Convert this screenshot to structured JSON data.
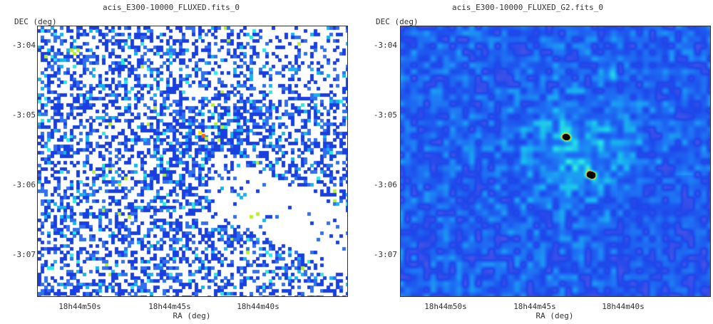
{
  "panels": [
    {
      "title": "acis_E300-10000_FLUXED.fits_0",
      "y_axis_label": "DEC (deg)",
      "x_axis_label": "RA (deg)",
      "y_ticks": [
        "-3:04",
        "-3:05",
        "-3:06",
        "-3:07"
      ],
      "x_ticks": [
        "18h44m50s",
        "18h44m45s",
        "18h44m40s"
      ],
      "style": "binned-counts"
    },
    {
      "title": "acis_E300-10000_FLUXED_G2.fits_0",
      "y_axis_label": "DEC (deg)",
      "x_axis_label": "RA (deg)",
      "y_ticks": [
        "-3:04",
        "-3:05",
        "-3:06",
        "-3:07"
      ],
      "x_ticks": [
        "18h44m50s",
        "18h44m45s",
        "18h44m40s"
      ],
      "style": "smoothed"
    }
  ],
  "colormap": [
    "#ffffff",
    "#1a3fe0",
    "#2f6ff0",
    "#19b3ec",
    "#2fe8e0",
    "#b8f030",
    "#ffe000",
    "#ff6a00",
    "#c00000",
    "#000000"
  ]
}
